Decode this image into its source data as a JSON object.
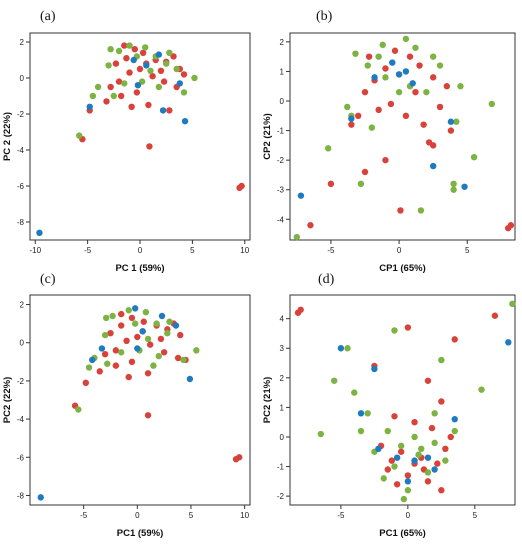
{
  "colors": {
    "red": "#d9423a",
    "green": "#7cb342",
    "blue": "#1f7bbf"
  },
  "chart_data": [
    {
      "type": "scatter",
      "label": "(a)",
      "xlabel": "PC 1 (59%)",
      "ylabel": "PC 2 (22%)",
      "xlim": [
        -10.5,
        10.5
      ],
      "ylim": [
        -9,
        2.5
      ],
      "xticks": [
        -10,
        -5,
        0,
        5,
        10
      ],
      "yticks": [
        2,
        0,
        -2,
        -4,
        -6,
        -8
      ],
      "series": [
        {
          "color": "red",
          "points": [
            [
              -1.5,
              1.8
            ],
            [
              -0.5,
              1.6
            ],
            [
              0.3,
              1.4
            ],
            [
              1.5,
              1.0
            ],
            [
              2.5,
              0.9
            ],
            [
              3.2,
              1.2
            ],
            [
              3.8,
              0.5
            ],
            [
              4.2,
              0.2
            ],
            [
              2.0,
              0.4
            ],
            [
              1.2,
              0.1
            ],
            [
              0.0,
              0.5
            ],
            [
              -1.0,
              0.3
            ],
            [
              -2.0,
              -0.2
            ],
            [
              -2.8,
              -0.5
            ],
            [
              -1.8,
              -1.0
            ],
            [
              -0.3,
              -0.8
            ],
            [
              0.8,
              -1.5
            ],
            [
              2.8,
              -1.8
            ],
            [
              -4.8,
              -1.8
            ],
            [
              -3.2,
              -1.3
            ],
            [
              -5.5,
              -3.4
            ],
            [
              0.9,
              -3.8
            ],
            [
              9.5,
              -6.1
            ],
            [
              9.7,
              -6.0
            ],
            [
              -1.3,
              1.1
            ],
            [
              0.6,
              0.8
            ],
            [
              3.5,
              -0.5
            ],
            [
              -0.8,
              -1.6
            ],
            [
              2.3,
              -0.2
            ],
            [
              -2.3,
              0.8
            ]
          ]
        },
        {
          "color": "green",
          "points": [
            [
              -2.0,
              1.5
            ],
            [
              -1.0,
              1.8
            ],
            [
              0.5,
              1.7
            ],
            [
              1.5,
              1.2
            ],
            [
              2.5,
              0.8
            ],
            [
              3.5,
              0.5
            ],
            [
              5.2,
              0.0
            ],
            [
              4.2,
              -0.8
            ],
            [
              -3.0,
              0.7
            ],
            [
              -4.0,
              -0.5
            ],
            [
              -1.5,
              -0.3
            ],
            [
              0.2,
              -0.2
            ],
            [
              1.8,
              -0.5
            ],
            [
              -2.5,
              -1.0
            ],
            [
              -4.5,
              -1.0
            ],
            [
              -5.8,
              -3.2
            ],
            [
              -0.3,
              1.2
            ],
            [
              1.0,
              0.4
            ],
            [
              2.8,
              1.4
            ],
            [
              -2.8,
              1.6
            ]
          ]
        },
        {
          "color": "blue",
          "points": [
            [
              -0.6,
              1.0
            ],
            [
              1.8,
              1.3
            ],
            [
              3.8,
              -0.3
            ],
            [
              -4.8,
              -1.6
            ],
            [
              4.3,
              -2.4
            ],
            [
              2.2,
              -1.8
            ],
            [
              -9.6,
              -8.6
            ],
            [
              0.6,
              0.7
            ],
            [
              -0.2,
              -0.4
            ]
          ]
        }
      ]
    },
    {
      "type": "scatter",
      "label": "(b)",
      "xlabel": "CP1 (65%)",
      "ylabel": "CP2 (21%)",
      "xlim": [
        -8,
        8.5
      ],
      "ylim": [
        -4.7,
        2.3
      ],
      "xticks": [
        -5,
        0,
        5
      ],
      "yticks": [
        2,
        1,
        0,
        -1,
        -2,
        -3,
        -4
      ],
      "series": [
        {
          "color": "red",
          "points": [
            [
              -0.3,
              1.7
            ],
            [
              0.8,
              1.5
            ],
            [
              1.5,
              1.2
            ],
            [
              2.5,
              0.8
            ],
            [
              3.5,
              0.5
            ],
            [
              0.0,
              0.9
            ],
            [
              -1.0,
              1.1
            ],
            [
              -1.8,
              0.7
            ],
            [
              -2.5,
              0.3
            ],
            [
              -1.5,
              -0.3
            ],
            [
              0.5,
              -0.5
            ],
            [
              1.8,
              -0.8
            ],
            [
              3.8,
              -1.0
            ],
            [
              -3.0,
              -0.5
            ],
            [
              -3.5,
              -0.8
            ],
            [
              -2.5,
              -2.4
            ],
            [
              -1.0,
              -2.0
            ],
            [
              -5.0,
              -2.8
            ],
            [
              -6.5,
              -4.2
            ],
            [
              0.1,
              -3.7
            ],
            [
              2.5,
              -1.5
            ],
            [
              8.0,
              -4.3
            ],
            [
              8.2,
              -4.2
            ],
            [
              -0.6,
              -0.1
            ],
            [
              1.2,
              0.3
            ],
            [
              3.0,
              -0.2
            ],
            [
              -2.2,
              1.5
            ],
            [
              2.2,
              -1.4
            ]
          ]
        },
        {
          "color": "green",
          "points": [
            [
              0.5,
              2.1
            ],
            [
              -1.2,
              1.9
            ],
            [
              1.2,
              1.8
            ],
            [
              3.0,
              1.2
            ],
            [
              4.5,
              0.5
            ],
            [
              6.8,
              -0.1
            ],
            [
              4.2,
              -0.7
            ],
            [
              -3.2,
              1.6
            ],
            [
              -2.3,
              1.2
            ],
            [
              -1.0,
              0.8
            ],
            [
              0.8,
              0.5
            ],
            [
              2.0,
              0.3
            ],
            [
              -3.8,
              -0.2
            ],
            [
              -2.0,
              -0.9
            ],
            [
              -3.5,
              -0.5
            ],
            [
              -5.2,
              -1.6
            ],
            [
              -7.5,
              -4.6
            ],
            [
              1.6,
              -3.7
            ],
            [
              4.0,
              -2.8
            ],
            [
              4.0,
              -3.0
            ],
            [
              5.5,
              -1.9
            ],
            [
              -2.8,
              -2.8
            ],
            [
              -1.5,
              1.5
            ],
            [
              2.5,
              1.5
            ],
            [
              0.0,
              0.3
            ]
          ]
        },
        {
          "color": "blue",
          "points": [
            [
              -0.5,
              1.3
            ],
            [
              0.5,
              1.0
            ],
            [
              -1.8,
              0.8
            ],
            [
              -3.5,
              -0.6
            ],
            [
              2.5,
              -2.2
            ],
            [
              3.8,
              -0.7
            ],
            [
              4.8,
              -2.9
            ],
            [
              -7.2,
              -3.2
            ],
            [
              0.0,
              0.9
            ],
            [
              1.0,
              0.6
            ]
          ]
        }
      ]
    },
    {
      "type": "scatter",
      "label": "(c)",
      "xlabel": "PC1 (59%)",
      "ylabel": "PC2 (22%)",
      "xlim": [
        -10,
        10.5
      ],
      "ylim": [
        -8.5,
        2.5
      ],
      "xticks": [
        -5,
        0,
        5,
        10
      ],
      "yticks": [
        2,
        0,
        -2,
        -4,
        -6,
        -8
      ],
      "series": [
        {
          "color": "red",
          "points": [
            [
              -1.5,
              1.5
            ],
            [
              -0.5,
              1.3
            ],
            [
              0.6,
              1.1
            ],
            [
              1.8,
              0.9
            ],
            [
              2.8,
              0.7
            ],
            [
              3.4,
              1.0
            ],
            [
              4.0,
              0.4
            ],
            [
              4.5,
              -0.9
            ],
            [
              2.2,
              0.2
            ],
            [
              1.2,
              -0.1
            ],
            [
              0.0,
              0.3
            ],
            [
              -1.0,
              0.1
            ],
            [
              -2.0,
              -0.4
            ],
            [
              -3.0,
              -0.6
            ],
            [
              -2.0,
              -1.2
            ],
            [
              -0.5,
              -1.0
            ],
            [
              1.0,
              -1.6
            ],
            [
              -4.8,
              -2.1
            ],
            [
              -3.5,
              -1.5
            ],
            [
              -5.8,
              -3.3
            ],
            [
              1.0,
              -3.8
            ],
            [
              9.2,
              -6.1
            ],
            [
              9.5,
              -6.0
            ],
            [
              -1.5,
              0.9
            ],
            [
              0.5,
              0.6
            ],
            [
              3.8,
              -0.8
            ],
            [
              -0.8,
              -1.8
            ],
            [
              2.5,
              -0.5
            ],
            [
              -2.5,
              0.5
            ]
          ]
        },
        {
          "color": "green",
          "points": [
            [
              -2.3,
              1.4
            ],
            [
              -0.8,
              1.7
            ],
            [
              0.8,
              1.6
            ],
            [
              1.8,
              1.0
            ],
            [
              2.8,
              0.5
            ],
            [
              4.3,
              -0.9
            ],
            [
              5.5,
              -0.4
            ],
            [
              -3.0,
              0.4
            ],
            [
              -4.0,
              -0.8
            ],
            [
              -1.5,
              -0.5
            ],
            [
              0.2,
              -0.4
            ],
            [
              2.0,
              -0.7
            ],
            [
              -2.8,
              -1.1
            ],
            [
              -4.5,
              -1.3
            ],
            [
              -5.5,
              -3.5
            ],
            [
              -0.2,
              1.0
            ],
            [
              1.0,
              0.2
            ],
            [
              3.0,
              1.1
            ],
            [
              -2.9,
              1.3
            ],
            [
              1.5,
              -1.2
            ]
          ]
        },
        {
          "color": "blue",
          "points": [
            [
              -0.2,
              1.8
            ],
            [
              2.3,
              1.4
            ],
            [
              3.6,
              0.9
            ],
            [
              -3.3,
              -0.3
            ],
            [
              -4.2,
              -0.9
            ],
            [
              4.9,
              -1.9
            ],
            [
              -9.0,
              -8.1
            ],
            [
              0.5,
              0.6
            ],
            [
              0.0,
              -0.3
            ]
          ]
        }
      ]
    },
    {
      "type": "scatter",
      "label": "(d)",
      "xlabel": "PC1 (65%)",
      "ylabel": "PC2 (21%)",
      "xlim": [
        -8.8,
        8
      ],
      "ylim": [
        -2.3,
        4.8
      ],
      "xticks": [
        -5,
        0,
        5
      ],
      "yticks": [
        4,
        3,
        2,
        1,
        0,
        -1,
        -2
      ],
      "series": [
        {
          "color": "red",
          "points": [
            [
              -8.2,
              4.2
            ],
            [
              -8.0,
              4.3
            ],
            [
              6.5,
              4.1
            ],
            [
              0.0,
              3.7
            ],
            [
              3.5,
              3.3
            ],
            [
              -2.5,
              2.4
            ],
            [
              1.5,
              1.9
            ],
            [
              2.5,
              1.2
            ],
            [
              -1.0,
              0.7
            ],
            [
              0.5,
              0.5
            ],
            [
              1.8,
              0.3
            ],
            [
              3.2,
              0.0
            ],
            [
              -2.0,
              -0.3
            ],
            [
              -0.5,
              -0.5
            ],
            [
              1.0,
              -0.7
            ],
            [
              2.2,
              -0.9
            ],
            [
              -1.5,
              -1.1
            ],
            [
              0.0,
              -1.3
            ],
            [
              1.5,
              -1.5
            ],
            [
              -0.8,
              -1.6
            ],
            [
              2.5,
              -1.8
            ],
            [
              0.5,
              -0.9
            ],
            [
              -1.2,
              -0.8
            ],
            [
              1.2,
              -1.1
            ],
            [
              2.8,
              -0.4
            ]
          ]
        },
        {
          "color": "green",
          "points": [
            [
              7.8,
              4.5
            ],
            [
              -4.5,
              3.0
            ],
            [
              -1.0,
              3.6
            ],
            [
              2.5,
              2.6
            ],
            [
              -5.5,
              1.9
            ],
            [
              -4.0,
              1.5
            ],
            [
              5.5,
              1.6
            ],
            [
              -3.0,
              0.8
            ],
            [
              2.0,
              0.8
            ],
            [
              -6.5,
              0.1
            ],
            [
              -3.5,
              0.2
            ],
            [
              -1.5,
              0.2
            ],
            [
              0.5,
              0.0
            ],
            [
              2.0,
              -0.2
            ],
            [
              3.5,
              0.2
            ],
            [
              -2.5,
              -0.5
            ],
            [
              -0.5,
              -0.3
            ],
            [
              1.0,
              -0.4
            ],
            [
              2.8,
              -0.8
            ],
            [
              -1.8,
              -1.4
            ],
            [
              0.0,
              -1.8
            ],
            [
              1.5,
              -1.2
            ],
            [
              -0.3,
              -2.1
            ],
            [
              -1.0,
              -1.0
            ],
            [
              0.8,
              -0.6
            ]
          ]
        },
        {
          "color": "blue",
          "points": [
            [
              -5.0,
              3.0
            ],
            [
              7.5,
              3.2
            ],
            [
              -2.5,
              2.3
            ],
            [
              -3.5,
              0.8
            ],
            [
              -2.2,
              -0.4
            ],
            [
              3.5,
              0.6
            ],
            [
              0.5,
              -0.8
            ],
            [
              1.5,
              -0.7
            ],
            [
              -0.8,
              -0.7
            ],
            [
              2.0,
              -1.1
            ],
            [
              0.0,
              -1.5
            ]
          ]
        }
      ]
    }
  ]
}
